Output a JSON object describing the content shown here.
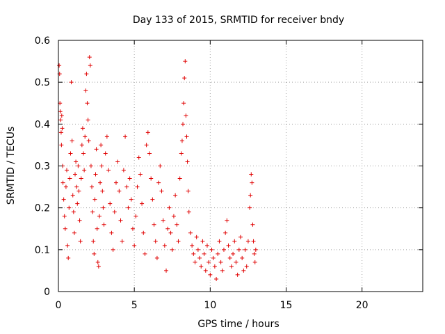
{
  "chart_data": {
    "type": "scatter",
    "title": "Day 133 of 2015, SRMTID for receiver bndy",
    "xlabel": "GPS time / hours",
    "ylabel": "SRMTID / TECUs",
    "xlim": [
      0,
      24
    ],
    "ylim": [
      0,
      0.6
    ],
    "xticks": [
      0,
      5,
      10,
      15,
      20
    ],
    "yticks": [
      0,
      0.1,
      0.2,
      0.3,
      0.4,
      0.5,
      0.6
    ],
    "xtick_labels": [
      "0",
      "5",
      "10",
      "15",
      "20"
    ],
    "ytick_labels": [
      "0",
      "0.1",
      "0.2",
      "0.3",
      "0.4",
      "0.5",
      "0.6"
    ],
    "grid": true,
    "marker": "+",
    "color": "#e00000",
    "series": [
      {
        "name": "SRMTID",
        "points": [
          [
            0.05,
            0.54
          ],
          [
            0.08,
            0.52
          ],
          [
            0.1,
            0.45
          ],
          [
            0.12,
            0.43
          ],
          [
            0.15,
            0.41
          ],
          [
            0.18,
            0.38
          ],
          [
            0.2,
            0.35
          ],
          [
            0.22,
            0.42
          ],
          [
            0.25,
            0.39
          ],
          [
            0.28,
            0.3
          ],
          [
            0.3,
            0.26
          ],
          [
            0.35,
            0.22
          ],
          [
            0.4,
            0.18
          ],
          [
            0.45,
            0.15
          ],
          [
            0.5,
            0.25
          ],
          [
            0.55,
            0.29
          ],
          [
            0.6,
            0.11
          ],
          [
            0.65,
            0.08
          ],
          [
            0.7,
            0.2
          ],
          [
            0.75,
            0.27
          ],
          [
            0.8,
            0.33
          ],
          [
            0.85,
            0.5
          ],
          [
            0.9,
            0.36
          ],
          [
            0.95,
            0.23
          ],
          [
            1.0,
            0.19
          ],
          [
            1.05,
            0.14
          ],
          [
            1.1,
            0.28
          ],
          [
            1.15,
            0.31
          ],
          [
            1.2,
            0.25
          ],
          [
            1.25,
            0.21
          ],
          [
            1.3,
            0.3
          ],
          [
            1.35,
            0.24
          ],
          [
            1.4,
            0.17
          ],
          [
            1.45,
            0.12
          ],
          [
            1.5,
            0.27
          ],
          [
            1.55,
            0.35
          ],
          [
            1.6,
            0.39
          ],
          [
            1.65,
            0.33
          ],
          [
            1.7,
            0.29
          ],
          [
            1.75,
            0.37
          ],
          [
            1.8,
            0.48
          ],
          [
            1.85,
            0.52
          ],
          [
            1.9,
            0.45
          ],
          [
            1.95,
            0.41
          ],
          [
            2.0,
            0.36
          ],
          [
            2.05,
            0.56
          ],
          [
            2.1,
            0.54
          ],
          [
            2.15,
            0.3
          ],
          [
            2.2,
            0.25
          ],
          [
            2.25,
            0.19
          ],
          [
            2.3,
            0.12
          ],
          [
            2.35,
            0.09
          ],
          [
            2.4,
            0.22
          ],
          [
            2.45,
            0.28
          ],
          [
            2.5,
            0.34
          ],
          [
            2.55,
            0.15
          ],
          [
            2.6,
            0.07
          ],
          [
            2.65,
            0.06
          ],
          [
            2.7,
            0.18
          ],
          [
            2.75,
            0.26
          ],
          [
            2.8,
            0.35
          ],
          [
            2.85,
            0.3
          ],
          [
            2.9,
            0.24
          ],
          [
            2.95,
            0.2
          ],
          [
            3.0,
            0.16
          ],
          [
            3.1,
            0.33
          ],
          [
            3.2,
            0.37
          ],
          [
            3.3,
            0.29
          ],
          [
            3.4,
            0.21
          ],
          [
            3.5,
            0.14
          ],
          [
            3.6,
            0.1
          ],
          [
            3.7,
            0.19
          ],
          [
            3.8,
            0.26
          ],
          [
            3.9,
            0.31
          ],
          [
            4.0,
            0.24
          ],
          [
            4.1,
            0.17
          ],
          [
            4.2,
            0.12
          ],
          [
            4.3,
            0.29
          ],
          [
            4.4,
            0.37
          ],
          [
            4.5,
            0.25
          ],
          [
            4.6,
            0.2
          ],
          [
            4.7,
            0.27
          ],
          [
            4.8,
            0.22
          ],
          [
            4.9,
            0.15
          ],
          [
            5.0,
            0.11
          ],
          [
            5.1,
            0.18
          ],
          [
            5.2,
            0.25
          ],
          [
            5.3,
            0.32
          ],
          [
            5.4,
            0.28
          ],
          [
            5.5,
            0.21
          ],
          [
            5.6,
            0.14
          ],
          [
            5.7,
            0.09
          ],
          [
            5.8,
            0.35
          ],
          [
            5.9,
            0.38
          ],
          [
            6.0,
            0.33
          ],
          [
            6.1,
            0.27
          ],
          [
            6.2,
            0.22
          ],
          [
            6.3,
            0.16
          ],
          [
            6.4,
            0.12
          ],
          [
            6.5,
            0.08
          ],
          [
            6.6,
            0.26
          ],
          [
            6.7,
            0.3
          ],
          [
            6.8,
            0.24
          ],
          [
            6.9,
            0.17
          ],
          [
            7.0,
            0.11
          ],
          [
            7.1,
            0.05
          ],
          [
            7.2,
            0.15
          ],
          [
            7.3,
            0.2
          ],
          [
            7.4,
            0.14
          ],
          [
            7.5,
            0.1
          ],
          [
            7.6,
            0.18
          ],
          [
            7.7,
            0.23
          ],
          [
            7.8,
            0.16
          ],
          [
            7.9,
            0.12
          ],
          [
            8.0,
            0.27
          ],
          [
            8.1,
            0.33
          ],
          [
            8.15,
            0.36
          ],
          [
            8.2,
            0.4
          ],
          [
            8.25,
            0.45
          ],
          [
            8.3,
            0.51
          ],
          [
            8.35,
            0.55
          ],
          [
            8.4,
            0.42
          ],
          [
            8.45,
            0.37
          ],
          [
            8.5,
            0.31
          ],
          [
            8.55,
            0.24
          ],
          [
            8.6,
            0.19
          ],
          [
            8.7,
            0.14
          ],
          [
            8.8,
            0.11
          ],
          [
            8.9,
            0.09
          ],
          [
            9.0,
            0.07
          ],
          [
            9.1,
            0.13
          ],
          [
            9.2,
            0.1
          ],
          [
            9.3,
            0.08
          ],
          [
            9.4,
            0.06
          ],
          [
            9.5,
            0.12
          ],
          [
            9.6,
            0.09
          ],
          [
            9.7,
            0.05
          ],
          [
            9.8,
            0.11
          ],
          [
            9.9,
            0.07
          ],
          [
            10.0,
            0.04
          ],
          [
            10.1,
            0.1
          ],
          [
            10.2,
            0.08
          ],
          [
            10.3,
            0.06
          ],
          [
            10.4,
            0.03
          ],
          [
            10.5,
            0.09
          ],
          [
            10.6,
            0.12
          ],
          [
            10.7,
            0.07
          ],
          [
            10.8,
            0.05
          ],
          [
            10.9,
            0.1
          ],
          [
            11.0,
            0.14
          ],
          [
            11.1,
            0.17
          ],
          [
            11.2,
            0.11
          ],
          [
            11.3,
            0.08
          ],
          [
            11.4,
            0.06
          ],
          [
            11.5,
            0.09
          ],
          [
            11.6,
            0.12
          ],
          [
            11.7,
            0.07
          ],
          [
            11.8,
            0.04
          ],
          [
            11.9,
            0.1
          ],
          [
            12.0,
            0.13
          ],
          [
            12.1,
            0.08
          ],
          [
            12.2,
            0.05
          ],
          [
            12.3,
            0.1
          ],
          [
            12.4,
            0.06
          ],
          [
            12.5,
            0.12
          ],
          [
            12.6,
            0.2
          ],
          [
            12.65,
            0.23
          ],
          [
            12.7,
            0.28
          ],
          [
            12.75,
            0.26
          ],
          [
            12.8,
            0.16
          ],
          [
            12.85,
            0.12
          ],
          [
            12.9,
            0.09
          ],
          [
            12.95,
            0.07
          ],
          [
            13.0,
            0.1
          ]
        ]
      }
    ]
  }
}
